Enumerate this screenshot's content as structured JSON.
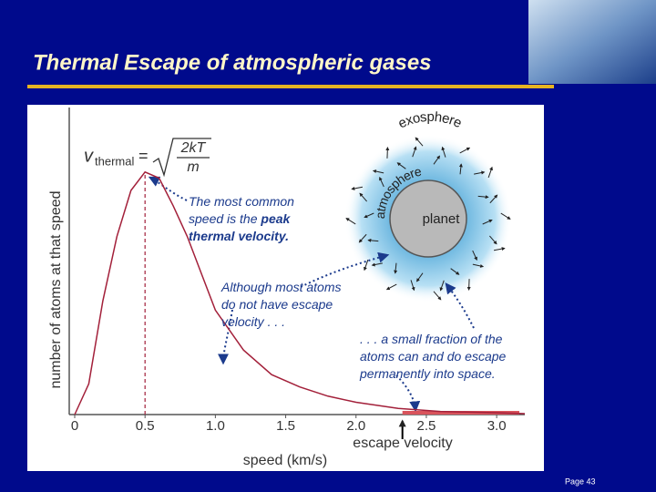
{
  "slide": {
    "title": "Thermal Escape of atmospheric gases",
    "page": "Page 43"
  },
  "chart_data": {
    "type": "line",
    "x_label": "speed (km/s)",
    "y_label": "number of atoms at that speed",
    "x": [
      0,
      0.1,
      0.2,
      0.3,
      0.4,
      0.5,
      0.6,
      0.7,
      0.8,
      0.9,
      1.0,
      1.2,
      1.4,
      1.6,
      1.8,
      2.0,
      2.3,
      2.6,
      3.0,
      3.2
    ],
    "series": [
      {
        "color": "#a3203a",
        "values": [
          0,
          0.1,
          0.37,
          0.58,
          0.73,
          0.79,
          0.77,
          0.68,
          0.58,
          0.46,
          0.34,
          0.21,
          0.13,
          0.09,
          0.06,
          0.04,
          0.02,
          0.01,
          0.006,
          0.003
        ]
      }
    ],
    "xlim": [
      0,
      3.2
    ],
    "ylim": [
      0,
      1
    ],
    "xticks": [
      0,
      0.5,
      {
        "value": 1,
        "label": "1.0"
      },
      1.5,
      {
        "value": 2,
        "label": "2.0"
      },
      2.5,
      {
        "value": 3,
        "label": "3.0"
      }
    ],
    "peak": 0.5,
    "escape_velocity": {
      "label": "escape velocity",
      "value": 2.33
    },
    "formula": {
      "symbol": "v",
      "subscript": "thermal",
      "equals": "=",
      "numerator": "2kT",
      "denominator": "m"
    },
    "annotations": [
      {
        "lines": [
          [
            {
              "text": "The most common"
            }
          ],
          [
            {
              "text": "speed is the "
            },
            {
              "text": "peak",
              "bold": true
            }
          ],
          [
            {
              "text": "thermal velocity.",
              "bold": true
            }
          ]
        ]
      },
      {
        "lines": [
          [
            {
              "text": "Although most atoms"
            }
          ],
          [
            {
              "text": "do not have escape"
            }
          ],
          [
            {
              "text": "velocity . . ."
            }
          ]
        ]
      },
      {
        "lines": [
          [
            {
              "text": ". . . a small fraction of the"
            }
          ],
          [
            {
              "text": "atoms can and do escape"
            }
          ],
          [
            {
              "text": "permanently into space."
            }
          ]
        ]
      }
    ],
    "diagram": {
      "planet": "planet",
      "atmosphere": "atmosphere",
      "exosphere": "exosphere"
    }
  }
}
